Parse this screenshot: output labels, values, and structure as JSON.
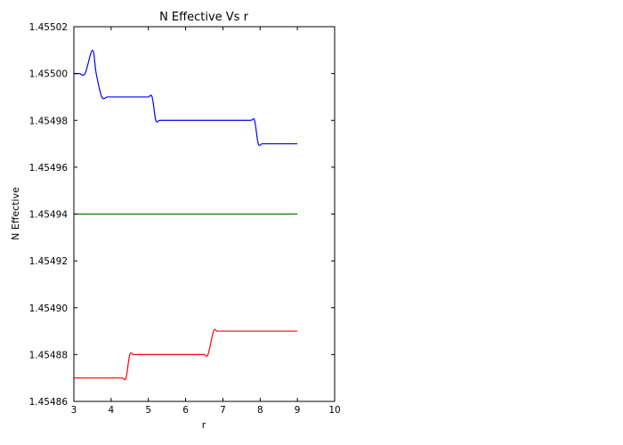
{
  "chart_data": {
    "type": "line",
    "title": "N Effective Vs r",
    "xlabel": "r",
    "ylabel": "N Effective",
    "xlim": [
      3,
      10
    ],
    "ylim": [
      1.45486,
      1.45502
    ],
    "xticks": [
      3,
      4,
      5,
      6,
      7,
      8,
      9,
      10
    ],
    "xtick_labels": [
      "3",
      "4",
      "5",
      "6",
      "7",
      "8",
      "9",
      "10"
    ],
    "yticks": [
      1.45486,
      1.45488,
      1.4549,
      1.45492,
      1.45494,
      1.45496,
      1.45498,
      1.455,
      1.45502
    ],
    "ytick_labels": [
      "1.45486",
      "1.45488",
      "1.45490",
      "1.45492",
      "1.45494",
      "1.45496",
      "1.45498",
      "1.45500",
      "1.45502"
    ],
    "grid": false,
    "series": [
      {
        "color": "#0000ff",
        "x": [
          3.0,
          3.15,
          3.3,
          3.5,
          3.6,
          3.75,
          3.9,
          4.05,
          4.2,
          4.5,
          4.7,
          4.9,
          5.0,
          5.1,
          5.2,
          5.3,
          5.5,
          5.8,
          6.0,
          6.5,
          7.0,
          7.3,
          7.5,
          7.75,
          7.85,
          7.95,
          8.05,
          8.2,
          8.4,
          8.7,
          9.0
        ],
        "y": [
          1.455,
          1.455,
          1.455,
          1.45501,
          1.455,
          1.45499,
          1.45499,
          1.45499,
          1.45499,
          1.45499,
          1.45499,
          1.45499,
          1.45499,
          1.45499,
          1.45498,
          1.45498,
          1.45498,
          1.45498,
          1.45498,
          1.45498,
          1.45498,
          1.45498,
          1.45498,
          1.45498,
          1.45498,
          1.45497,
          1.45497,
          1.45497,
          1.45497,
          1.45497,
          1.45497
        ]
      },
      {
        "color": "#008000",
        "x": [
          3.0,
          9.0
        ],
        "y": [
          1.45494,
          1.45494
        ]
      },
      {
        "color": "#ff0000",
        "x": [
          3.0,
          3.5,
          4.0,
          4.15,
          4.3,
          4.4,
          4.5,
          4.6,
          4.7,
          4.85,
          5.0,
          5.5,
          6.0,
          6.2,
          6.35,
          6.5,
          6.6,
          6.75,
          6.85,
          7.0,
          7.2,
          7.5,
          8.0,
          8.5,
          9.0
        ],
        "y": [
          1.45487,
          1.45487,
          1.45487,
          1.45487,
          1.45487,
          1.45487,
          1.45488,
          1.45488,
          1.45488,
          1.45488,
          1.45488,
          1.45488,
          1.45488,
          1.45488,
          1.45488,
          1.45488,
          1.45488,
          1.45489,
          1.45489,
          1.45489,
          1.45489,
          1.45489,
          1.45489,
          1.45489,
          1.45489
        ]
      }
    ]
  }
}
